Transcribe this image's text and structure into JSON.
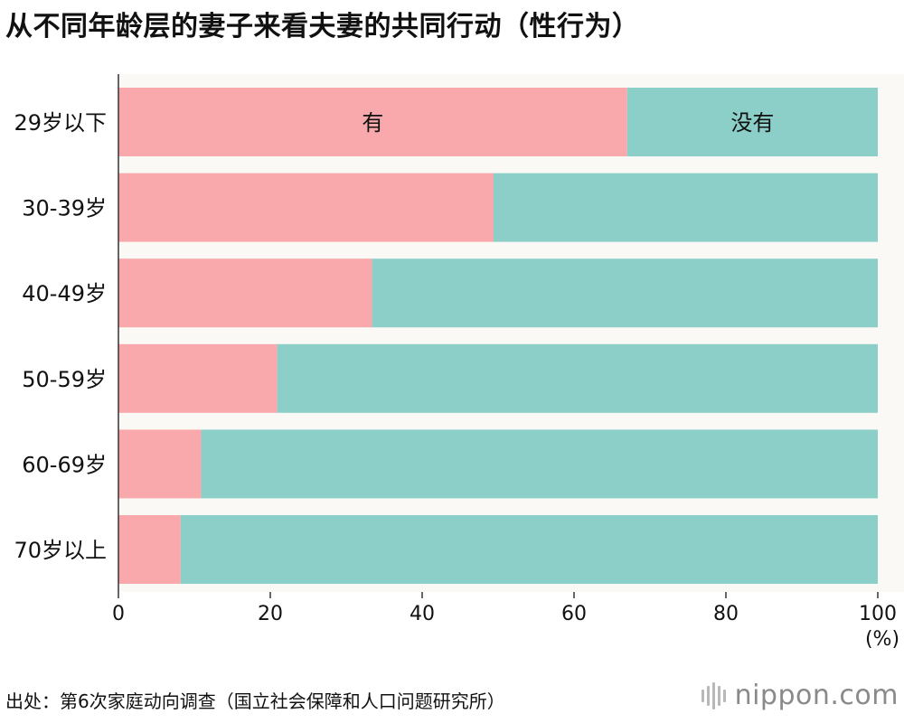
{
  "title": "从不同年龄层的妻子来看夫妻的共同行动（性行为）",
  "chart_data": {
    "type": "bar",
    "orientation": "horizontal",
    "stacked": true,
    "title": "从不同年龄层的妻子来看夫妻的共同行动（性行为）",
    "categories": [
      "29岁以下",
      "30-39岁",
      "40-49岁",
      "50-59岁",
      "60-69岁",
      "70岁以上"
    ],
    "series": [
      {
        "name": "有",
        "color": "#f9a9ab",
        "values": [
          67,
          49.4,
          33.4,
          20.9,
          10.9,
          8.2
        ]
      },
      {
        "name": "没有",
        "color": "#8ccfc9",
        "values": [
          33,
          50.6,
          66.6,
          79.1,
          89.1,
          91.8
        ]
      }
    ],
    "xlim": [
      0,
      100
    ],
    "xticks": [
      "0",
      "20",
      "40",
      "60",
      "80",
      "100"
    ],
    "xunit": "(%)",
    "xlabel": "",
    "ylabel": "",
    "grid": false,
    "legend": "inline-first-bar"
  },
  "source": "出处：第6次家庭动向调查（国立社会保障和人口问题研究所）",
  "brand": {
    "name": "nippon.com",
    "logo_icon": "nippon-logo-icon"
  }
}
